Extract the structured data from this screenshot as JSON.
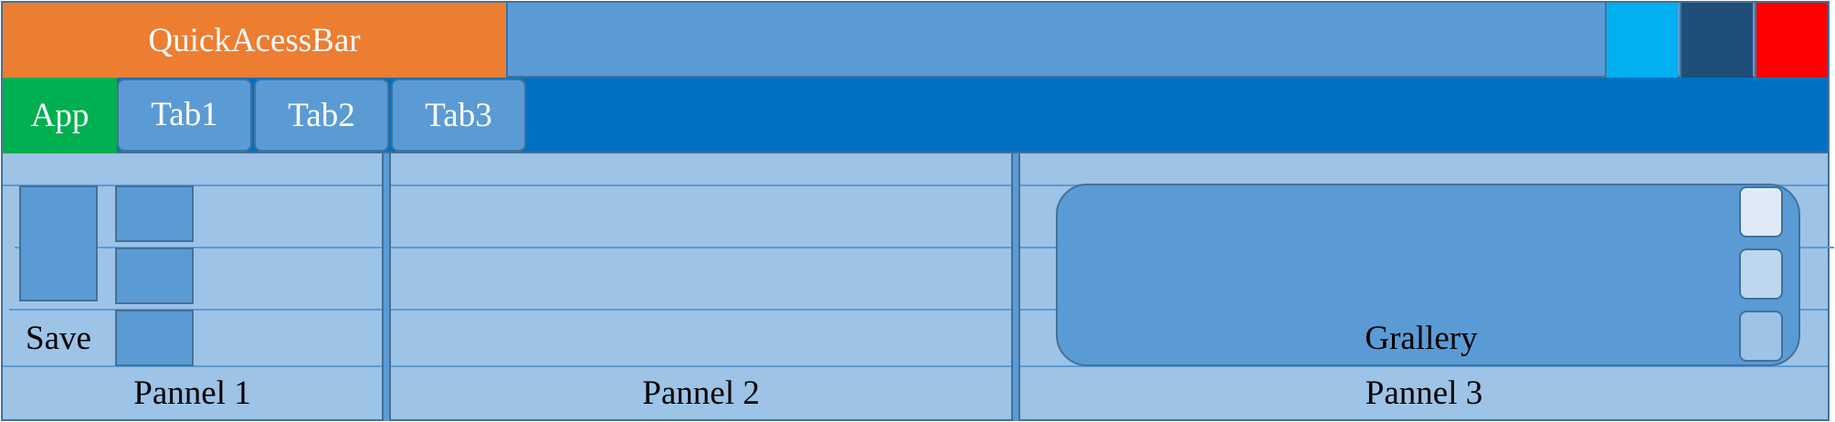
{
  "title_bar": {
    "quick_access_bar_label": "QuickAcessBar",
    "colors": {
      "quick_access": "#ed7d31",
      "title": "#5b9bd5",
      "minimize": "#00b0f0",
      "maximize": "#1f4e79",
      "close": "#ff0000"
    }
  },
  "ribbon": {
    "app_label": "App",
    "tabs": [
      {
        "label": "Tab1"
      },
      {
        "label": "Tab2"
      },
      {
        "label": "Tab3"
      }
    ],
    "colors": {
      "app": "#00b050",
      "row": "#0070c0",
      "tab": "#5b9bd5"
    }
  },
  "panels": [
    {
      "label": "Pannel 1",
      "save_label": "Save"
    },
    {
      "label": "Pannel 2"
    },
    {
      "label": "Pannel 3",
      "gallery_label": "Grallery"
    }
  ],
  "colors": {
    "panel_bg": "#9dc3e6",
    "outline": "#41719c"
  }
}
